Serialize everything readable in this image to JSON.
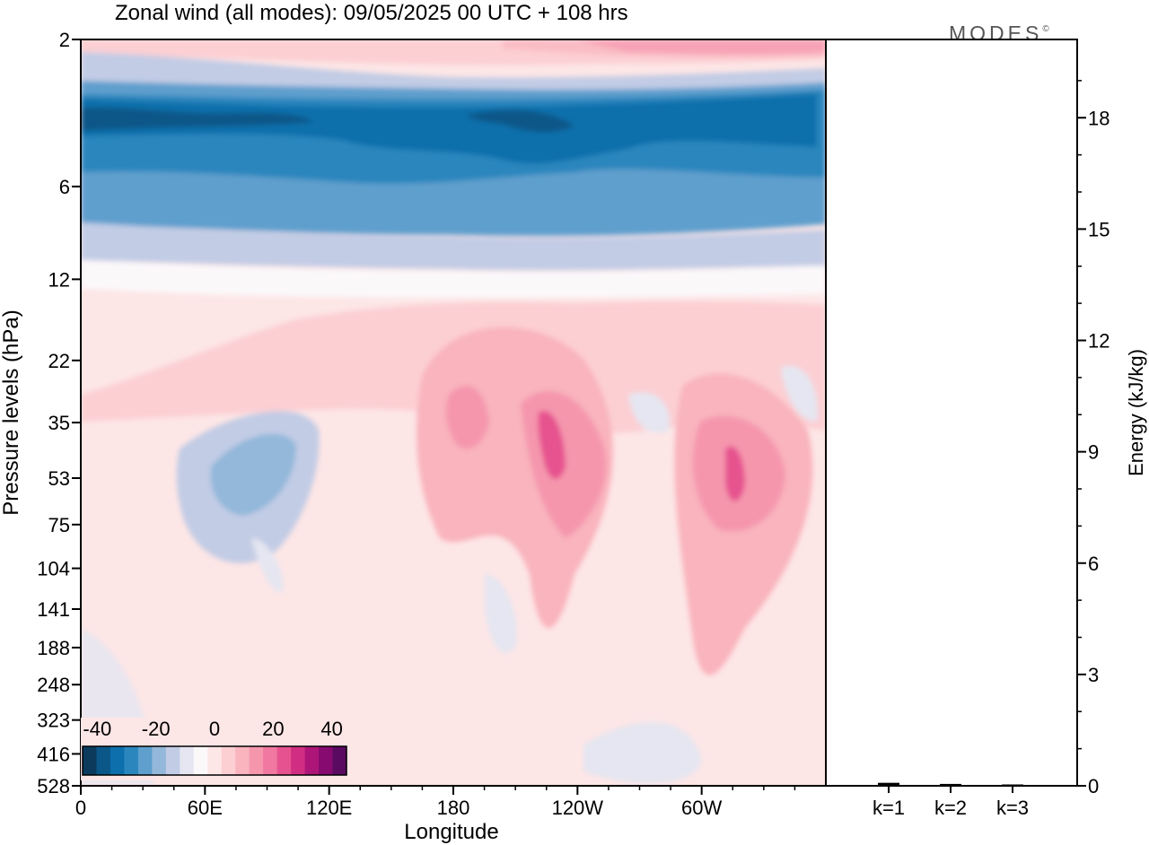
{
  "title": "Zonal wind (all modes):  09/05/2025  00 UTC  + 108 hrs",
  "logo_text": "MODES",
  "logo_mark": "©",
  "chart_data": [
    {
      "type": "heatmap",
      "variable": "Zonal wind",
      "xlabel": "Longitude",
      "ylabel": "Pressure levels (hPa)",
      "x_ticks": [
        "0",
        "60E",
        "120E",
        "180",
        "120W",
        "60W"
      ],
      "y_ticks": [
        2,
        6,
        12,
        22,
        35,
        53,
        75,
        104,
        141,
        188,
        248,
        323,
        416,
        528
      ],
      "y_scale": "log",
      "colorbar": {
        "ticks": [
          "-40",
          "-20",
          "0",
          "20",
          "40"
        ],
        "range": [
          -45,
          45
        ],
        "step": 5,
        "colors": [
          "#0b3a5c",
          "#0b5788",
          "#0d6fab",
          "#2b86bd",
          "#5e9fcd",
          "#93b8da",
          "#c2cce5",
          "#e5e6f1",
          "#fbf8fa",
          "#fde6e6",
          "#fccfd3",
          "#f9b4bd",
          "#f596ad",
          "#f078a1",
          "#e6528f",
          "#d12e83",
          "#ae1578",
          "#860a6f",
          "#5a0a60"
        ]
      },
      "grid": false
    },
    {
      "type": "bar",
      "categories": [
        "k=1",
        "k=2",
        "k=3"
      ],
      "values": [
        0.08,
        0.05,
        0.03
      ],
      "ylabel": "Energy (kJ/kg)",
      "ylim": [
        0,
        20
      ],
      "y_ticks": [
        0,
        3,
        6,
        9,
        12,
        15,
        18
      ]
    }
  ]
}
